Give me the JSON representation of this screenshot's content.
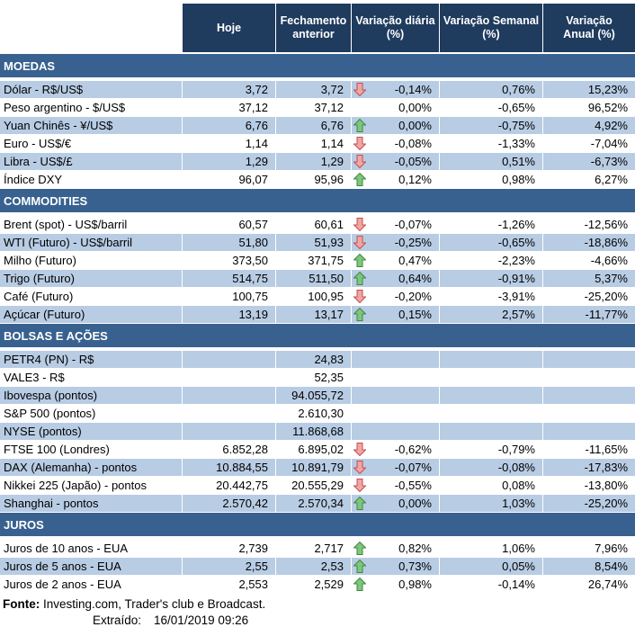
{
  "colors": {
    "header_bg": "#1F3B5E",
    "section_bg": "#38618F",
    "row_blue": "#B8CCE4",
    "row_white": "#FFFFFF",
    "up_arrow_fill": "#7FC47F",
    "up_arrow_stroke": "#3E8A3E",
    "down_arrow_fill": "#F2A5A5",
    "down_arrow_stroke": "#C0504D"
  },
  "header": {
    "columns": [
      {
        "line1": "Hoje",
        "line2": ""
      },
      {
        "line1": "Fechamento",
        "line2": "anterior"
      },
      {
        "line1": "Variação diária",
        "line2": "(%)"
      },
      {
        "line1": "Variação Semanal",
        "line2": "(%)"
      },
      {
        "line1": "Variação",
        "line2": "Anual (%)"
      }
    ]
  },
  "sections": [
    {
      "title": "MOEDAS",
      "slug": "moedas",
      "stripe_start": "blue",
      "rows": [
        {
          "label": "Dólar - R$/US$",
          "hoje": "3,72",
          "fechamento": "3,72",
          "arrow": "down",
          "var_diaria": "-0,14%",
          "var_semanal": "0,76%",
          "var_anual": "15,23%"
        },
        {
          "label": "Peso argentino - $/US$",
          "hoje": "37,12",
          "fechamento": "37,12",
          "arrow": "none",
          "var_diaria": "0,00%",
          "var_semanal": "-0,65%",
          "var_anual": "96,52%"
        },
        {
          "label": "Yuan Chinês - ¥/US$",
          "hoje": "6,76",
          "fechamento": "6,76",
          "arrow": "up",
          "var_diaria": "0,00%",
          "var_semanal": "-0,75%",
          "var_anual": "4,92%"
        },
        {
          "label": "Euro - US$/€",
          "hoje": "1,14",
          "fechamento": "1,14",
          "arrow": "down",
          "var_diaria": "-0,08%",
          "var_semanal": "-1,33%",
          "var_anual": "-7,04%"
        },
        {
          "label": "Libra - US$/£",
          "hoje": "1,29",
          "fechamento": "1,29",
          "arrow": "down",
          "var_diaria": "-0,05%",
          "var_semanal": "0,51%",
          "var_anual": "-6,73%"
        },
        {
          "label": "Índice DXY",
          "hoje": "96,07",
          "fechamento": "95,96",
          "arrow": "up",
          "var_diaria": "0,12%",
          "var_semanal": "0,98%",
          "var_anual": "6,27%"
        }
      ]
    },
    {
      "title": "COMMODITIES",
      "slug": "commodities",
      "stripe_start": "white",
      "rows": [
        {
          "label": "Brent (spot) - US$/barril",
          "hoje": "60,57",
          "fechamento": "60,61",
          "arrow": "down",
          "var_diaria": "-0,07%",
          "var_semanal": "-1,26%",
          "var_anual": "-12,56%"
        },
        {
          "label": "WTI (Futuro) - US$/barril",
          "hoje": "51,80",
          "fechamento": "51,93",
          "arrow": "down",
          "var_diaria": "-0,25%",
          "var_semanal": "-0,65%",
          "var_anual": "-18,86%"
        },
        {
          "label": "Milho (Futuro)",
          "hoje": "373,50",
          "fechamento": "371,75",
          "arrow": "up",
          "var_diaria": "0,47%",
          "var_semanal": "-2,23%",
          "var_anual": "-4,66%"
        },
        {
          "label": "Trigo (Futuro)",
          "hoje": "514,75",
          "fechamento": "511,50",
          "arrow": "up",
          "var_diaria": "0,64%",
          "var_semanal": "-0,91%",
          "var_anual": "5,37%"
        },
        {
          "label": "Café (Futuro)",
          "hoje": "100,75",
          "fechamento": "100,95",
          "arrow": "down",
          "var_diaria": "-0,20%",
          "var_semanal": "-3,91%",
          "var_anual": "-25,20%"
        },
        {
          "label": "Açúcar (Futuro)",
          "hoje": "13,19",
          "fechamento": "13,17",
          "arrow": "up",
          "var_diaria": "0,15%",
          "var_semanal": "2,57%",
          "var_anual": "-11,77%"
        }
      ]
    },
    {
      "title": "BOLSAS E AÇÕES",
      "slug": "bolsas-e-acoes",
      "stripe_start": "blue",
      "rows": [
        {
          "label": "PETR4 (PN) - R$",
          "hoje": "",
          "fechamento": "24,83",
          "arrow": "none",
          "var_diaria": "",
          "var_semanal": "",
          "var_anual": ""
        },
        {
          "label": "VALE3 - R$",
          "hoje": "",
          "fechamento": "52,35",
          "arrow": "none",
          "var_diaria": "",
          "var_semanal": "",
          "var_anual": ""
        },
        {
          "label": "Ibovespa (pontos)",
          "hoje": "",
          "fechamento": "94.055,72",
          "arrow": "none",
          "var_diaria": "",
          "var_semanal": "",
          "var_anual": ""
        },
        {
          "label": "S&P 500 (pontos)",
          "hoje": "",
          "fechamento": "2.610,30",
          "arrow": "none",
          "var_diaria": "",
          "var_semanal": "",
          "var_anual": ""
        },
        {
          "label": "NYSE (pontos)",
          "hoje": "",
          "fechamento": "11.868,68",
          "arrow": "none",
          "var_diaria": "",
          "var_semanal": "",
          "var_anual": ""
        },
        {
          "label": "FTSE 100 (Londres)",
          "hoje": "6.852,28",
          "fechamento": "6.895,02",
          "arrow": "down",
          "var_diaria": "-0,62%",
          "var_semanal": "-0,79%",
          "var_anual": "-11,65%"
        },
        {
          "label": "DAX (Alemanha) - pontos",
          "hoje": "10.884,55",
          "fechamento": "10.891,79",
          "arrow": "down",
          "var_diaria": "-0,07%",
          "var_semanal": "-0,08%",
          "var_anual": "-17,83%"
        },
        {
          "label": "Nikkei 225 (Japão) - pontos",
          "hoje": "20.442,75",
          "fechamento": "20.555,29",
          "arrow": "down",
          "var_diaria": "-0,55%",
          "var_semanal": "0,08%",
          "var_anual": "-13,80%"
        },
        {
          "label": "Shanghai - pontos",
          "hoje": "2.570,42",
          "fechamento": "2.570,34",
          "arrow": "up",
          "var_diaria": "0,00%",
          "var_semanal": "1,03%",
          "var_anual": "-25,20%"
        }
      ]
    },
    {
      "title": "JUROS",
      "slug": "juros",
      "stripe_start": "white",
      "rows": [
        {
          "label": "Juros de 10 anos - EUA",
          "hoje": "2,739",
          "fechamento": "2,717",
          "arrow": "up",
          "var_diaria": "0,82%",
          "var_semanal": "1,06%",
          "var_anual": "7,96%"
        },
        {
          "label": "Juros de 5 anos - EUA",
          "hoje": "2,55",
          "fechamento": "2,53",
          "arrow": "up",
          "var_diaria": "0,73%",
          "var_semanal": "0,05%",
          "var_anual": "8,54%"
        },
        {
          "label": "Juros de 2 anos - EUA",
          "hoje": "2,553",
          "fechamento": "2,529",
          "arrow": "up",
          "var_diaria": "0,98%",
          "var_semanal": "-0,14%",
          "var_anual": "26,74%"
        }
      ]
    }
  ],
  "footer": {
    "fonte_label": "Fonte:",
    "fonte_text": " Investing.com, Trader's club e Broadcast.",
    "extraido_label": "Extraído:",
    "extraido_value": "16/01/2019 09:26"
  }
}
